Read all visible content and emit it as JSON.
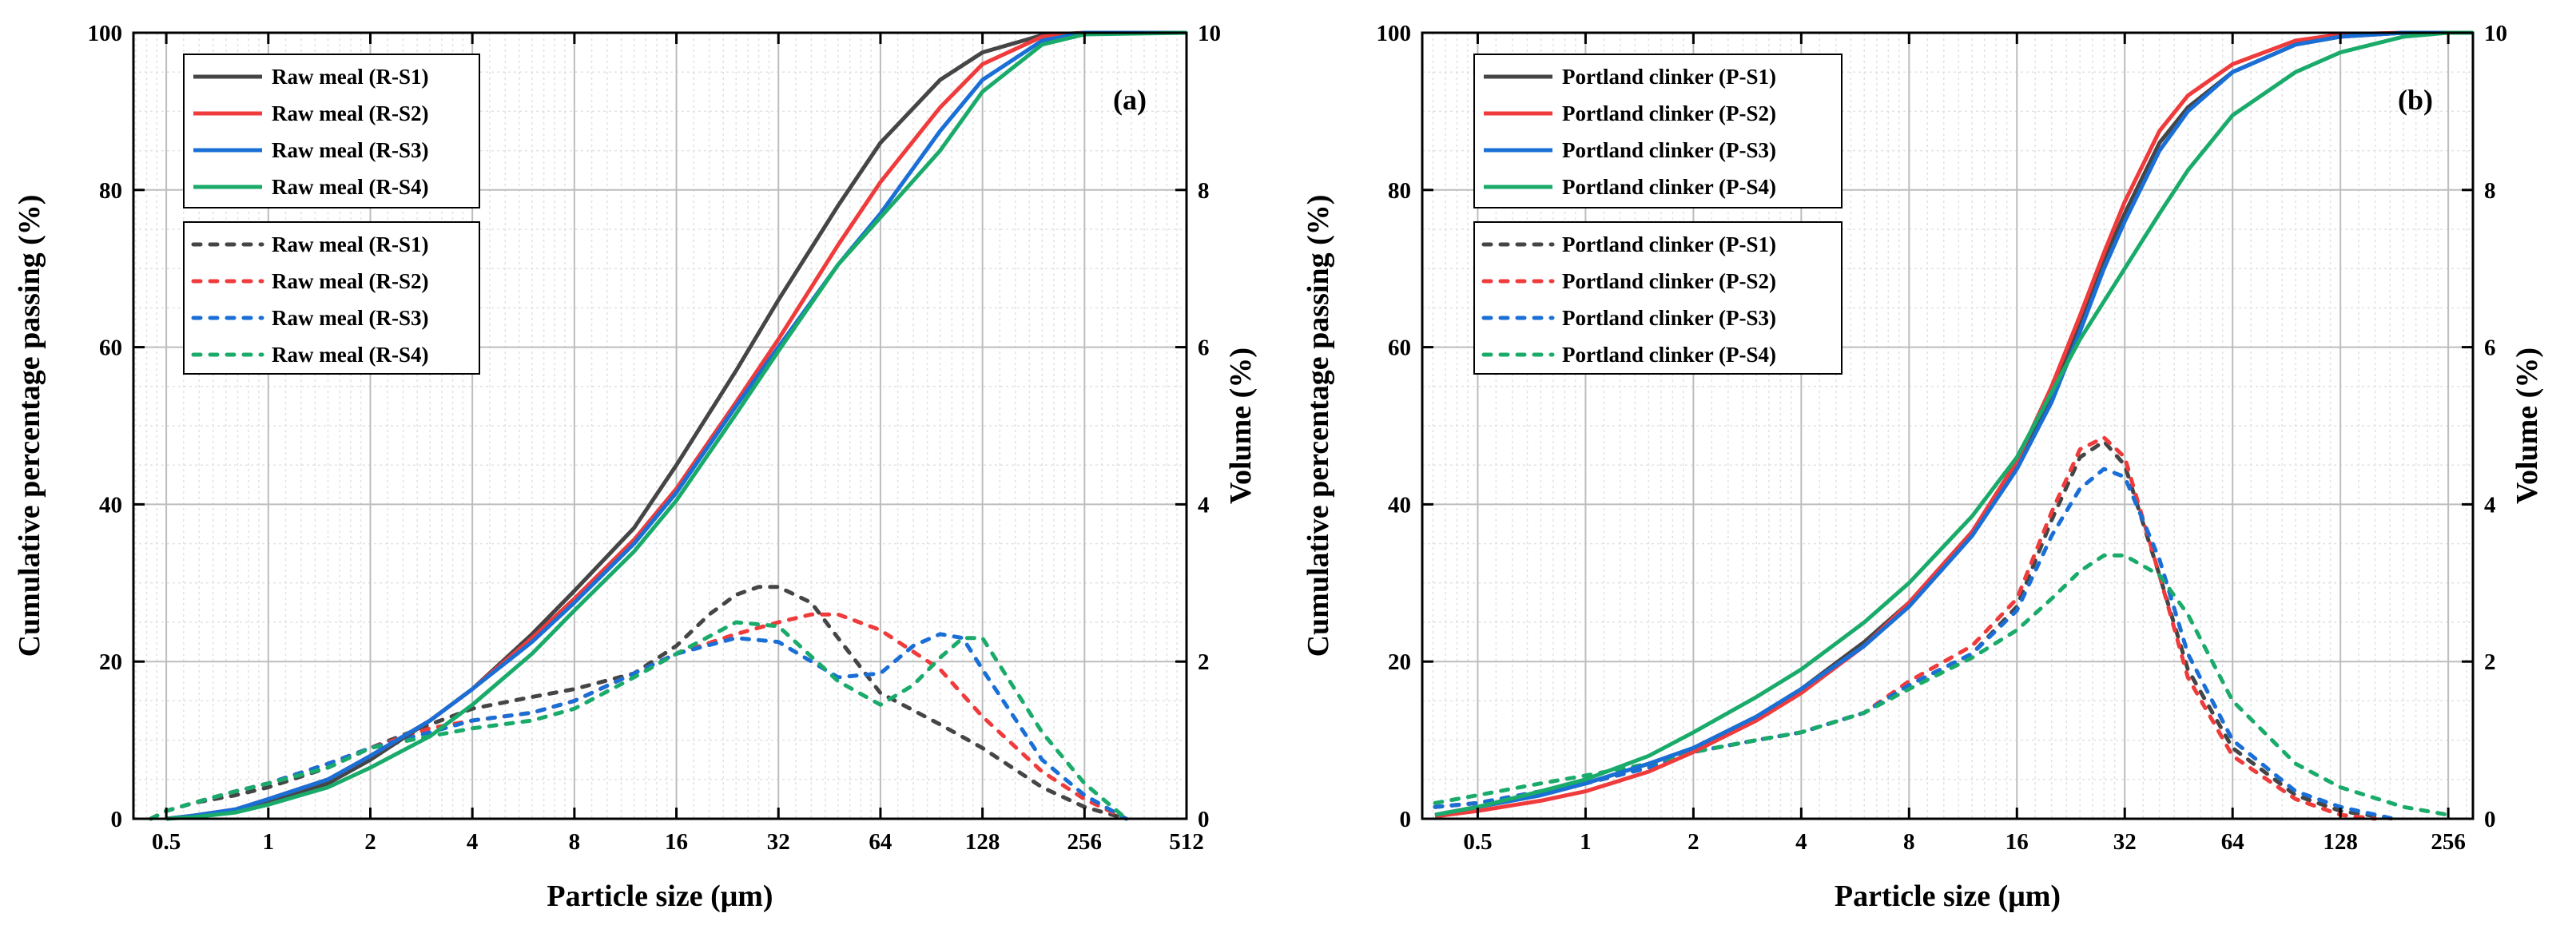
{
  "colors": {
    "S1": "#454545",
    "S2": "#ef3b3b",
    "S3": "#1a6fd6",
    "S4": "#1aab6b",
    "grid_major": "#bdbdbd",
    "grid_minor": "#e2e2e2"
  },
  "chart_data": [
    {
      "type": "line",
      "panel_label": "(a)",
      "xlabel": "Particle size (μm)",
      "ylabel_left": "Cumulative percentage passing (%)",
      "ylabel_right": "Volume (%)",
      "x_scale": "log2",
      "xlim": [
        0.4,
        512
      ],
      "x_ticks": [
        0.5,
        1,
        2,
        4,
        8,
        16,
        32,
        64,
        128,
        256,
        512
      ],
      "x_tick_labels": [
        "0.5",
        "1",
        "2",
        "4",
        "8",
        "16",
        "32",
        "64",
        "128",
        "256",
        "512"
      ],
      "ylim_left": [
        0,
        100
      ],
      "y_ticks_left": [
        0,
        20,
        40,
        60,
        80,
        100
      ],
      "y_tick_labels_left": [
        "0",
        "20",
        "40",
        "60",
        "80",
        "100"
      ],
      "ylim_right": [
        0,
        10
      ],
      "y_ticks_right": [
        0,
        2,
        4,
        6,
        8,
        10
      ],
      "y_tick_labels_right": [
        "0",
        "2",
        "4",
        "6",
        "8",
        "10"
      ],
      "grid": true,
      "legend_placement": "top-left",
      "cumulative_series": [
        {
          "name": "Raw meal (R-S1)",
          "color_key": "S1",
          "axis": "left",
          "style": "solid",
          "x": [
            0.5,
            0.6,
            0.8,
            1,
            1.5,
            2,
            3,
            4,
            6,
            8,
            12,
            16,
            24,
            32,
            48,
            64,
            96,
            128,
            192,
            256,
            512
          ],
          "y": [
            0,
            0.3,
            1,
            2,
            4.5,
            7.5,
            12.5,
            16.5,
            23.5,
            29,
            37,
            45,
            57,
            66,
            78,
            86,
            94,
            97.5,
            99.7,
            100,
            100
          ]
        },
        {
          "name": "Raw meal (R-S2)",
          "color_key": "S2",
          "axis": "left",
          "style": "solid",
          "x": [
            0.5,
            0.6,
            0.8,
            1,
            1.5,
            2,
            3,
            4,
            6,
            8,
            12,
            16,
            24,
            32,
            48,
            64,
            96,
            128,
            192,
            256,
            512
          ],
          "y": [
            0,
            0.4,
            1.2,
            2.5,
            5,
            8,
            12.5,
            16.5,
            23,
            28,
            35.5,
            42,
            53,
            61,
            73,
            81,
            90.5,
            96,
            99.5,
            100,
            100
          ]
        },
        {
          "name": "Raw meal (R-S3)",
          "color_key": "S3",
          "axis": "left",
          "style": "solid",
          "x": [
            0.5,
            0.6,
            0.8,
            1,
            1.5,
            2,
            3,
            4,
            6,
            8,
            12,
            16,
            24,
            32,
            48,
            64,
            96,
            128,
            192,
            256,
            512
          ],
          "y": [
            0,
            0.4,
            1.2,
            2.5,
            5,
            8,
            12.5,
            16.5,
            22.5,
            27.5,
            35,
            41.5,
            52.5,
            60,
            70.5,
            77,
            87.5,
            94,
            99,
            100,
            100
          ]
        },
        {
          "name": "Raw meal (R-S4)",
          "color_key": "S4",
          "axis": "left",
          "style": "solid",
          "x": [
            0.5,
            0.6,
            0.8,
            1,
            1.5,
            2,
            3,
            4,
            6,
            8,
            12,
            16,
            24,
            32,
            48,
            64,
            96,
            128,
            192,
            256,
            512
          ],
          "y": [
            0,
            0.2,
            0.8,
            1.8,
            4,
            6.5,
            10.5,
            14.5,
            21,
            26.5,
            34,
            40.5,
            51.5,
            59.5,
            70.5,
            76.5,
            85,
            92.5,
            98.5,
            99.8,
            100
          ]
        }
      ],
      "volume_series": [
        {
          "name": "Raw meal (R-S1)",
          "color_key": "S1",
          "axis": "right",
          "style": "dotted",
          "x": [
            0.45,
            0.5,
            0.6,
            0.8,
            1,
            1.5,
            2,
            3,
            4,
            6,
            8,
            12,
            16,
            20,
            24,
            28,
            32,
            40,
            48,
            64,
            96,
            128,
            192,
            256,
            340
          ],
          "y": [
            0,
            0.1,
            0.2,
            0.3,
            0.4,
            0.65,
            0.9,
            1.2,
            1.4,
            1.55,
            1.65,
            1.85,
            2.2,
            2.6,
            2.85,
            2.95,
            2.95,
            2.75,
            2.3,
            1.6,
            1.2,
            0.9,
            0.4,
            0.15,
            0
          ]
        },
        {
          "name": "Raw meal (R-S2)",
          "color_key": "S2",
          "axis": "right",
          "style": "dotted",
          "x": [
            0.45,
            0.5,
            0.6,
            0.8,
            1,
            1.5,
            2,
            3,
            4,
            6,
            8,
            12,
            16,
            24,
            32,
            40,
            48,
            64,
            96,
            128,
            192,
            256,
            340
          ],
          "y": [
            0,
            0.1,
            0.2,
            0.35,
            0.45,
            0.7,
            0.9,
            1.15,
            1.25,
            1.35,
            1.5,
            1.85,
            2.1,
            2.35,
            2.5,
            2.6,
            2.6,
            2.4,
            1.9,
            1.3,
            0.6,
            0.25,
            0
          ]
        },
        {
          "name": "Raw meal (R-S3)",
          "color_key": "S3",
          "axis": "right",
          "style": "dotted",
          "x": [
            0.45,
            0.5,
            0.6,
            0.8,
            1,
            1.5,
            2,
            3,
            4,
            6,
            8,
            12,
            16,
            24,
            32,
            48,
            64,
            80,
            96,
            112,
            128,
            192,
            256,
            340
          ],
          "y": [
            0,
            0.1,
            0.2,
            0.35,
            0.45,
            0.7,
            0.9,
            1.1,
            1.25,
            1.35,
            1.5,
            1.85,
            2.1,
            2.3,
            2.25,
            1.8,
            1.85,
            2.2,
            2.35,
            2.3,
            1.9,
            0.75,
            0.3,
            0
          ]
        },
        {
          "name": "Raw meal (R-S4)",
          "color_key": "S4",
          "axis": "right",
          "style": "dotted",
          "x": [
            0.45,
            0.5,
            0.6,
            0.8,
            1,
            1.5,
            2,
            3,
            4,
            6,
            8,
            12,
            16,
            24,
            32,
            48,
            64,
            80,
            96,
            112,
            128,
            192,
            256,
            340
          ],
          "y": [
            0,
            0.1,
            0.2,
            0.35,
            0.45,
            0.65,
            0.9,
            1.05,
            1.15,
            1.25,
            1.4,
            1.8,
            2.1,
            2.5,
            2.45,
            1.75,
            1.45,
            1.7,
            2.05,
            2.3,
            2.3,
            1.1,
            0.45,
            0
          ]
        }
      ]
    },
    {
      "type": "line",
      "panel_label": "(b)",
      "xlabel": "Particle size (μm)",
      "ylabel_left": "Cumulative percentage passing (%)",
      "ylabel_right": "Volume (%)",
      "x_scale": "log2",
      "xlim": [
        0.35,
        300
      ],
      "x_ticks": [
        0.5,
        1,
        2,
        4,
        8,
        16,
        32,
        64,
        128,
        256
      ],
      "x_tick_labels": [
        "0.5",
        "1",
        "2",
        "4",
        "8",
        "16",
        "32",
        "64",
        "128",
        "256"
      ],
      "ylim_left": [
        0,
        100
      ],
      "y_ticks_left": [
        0,
        20,
        40,
        60,
        80,
        100
      ],
      "y_tick_labels_left": [
        "0",
        "20",
        "40",
        "60",
        "80",
        "100"
      ],
      "ylim_right": [
        0,
        10
      ],
      "y_ticks_right": [
        0,
        2,
        4,
        6,
        8,
        10
      ],
      "y_tick_labels_right": [
        "0",
        "2",
        "4",
        "6",
        "8",
        "10"
      ],
      "grid": true,
      "legend_placement": "top-left",
      "cumulative_series": [
        {
          "name": "Portland clinker (P-S1)",
          "color_key": "S1",
          "axis": "left",
          "style": "solid",
          "x": [
            0.38,
            0.5,
            0.75,
            1,
            1.5,
            2,
            3,
            4,
            6,
            8,
            12,
            16,
            20,
            24,
            28,
            32,
            40,
            48,
            64,
            96,
            128,
            192,
            300
          ],
          "y": [
            0.5,
            1.5,
            3,
            4.5,
            7,
            9,
            13,
            16.5,
            22.5,
            27.5,
            36.5,
            45,
            54,
            63,
            71,
            77,
            86,
            90.5,
            95,
            98.5,
            99.5,
            100,
            100
          ]
        },
        {
          "name": "Portland clinker (P-S2)",
          "color_key": "S2",
          "axis": "left",
          "style": "solid",
          "x": [
            0.38,
            0.5,
            0.75,
            1,
            1.5,
            2,
            3,
            4,
            6,
            8,
            12,
            16,
            20,
            24,
            28,
            32,
            40,
            48,
            64,
            96,
            128,
            192,
            300
          ],
          "y": [
            0.3,
            1,
            2.3,
            3.5,
            6,
            8.5,
            12.5,
            16,
            22,
            27.5,
            36.5,
            45.5,
            55,
            64,
            72,
            78.5,
            87.5,
            92,
            96,
            99,
            99.8,
            100,
            100
          ]
        },
        {
          "name": "Portland clinker (P-S3)",
          "color_key": "S3",
          "axis": "left",
          "style": "solid",
          "x": [
            0.38,
            0.5,
            0.75,
            1,
            1.5,
            2,
            3,
            4,
            6,
            8,
            12,
            16,
            20,
            24,
            28,
            32,
            40,
            48,
            64,
            96,
            128,
            192,
            300
          ],
          "y": [
            0.5,
            1.5,
            3,
            4.5,
            7,
            9,
            13,
            16.5,
            22,
            27,
            36,
            44.5,
            53,
            62,
            70,
            76,
            85,
            90,
            95,
            98.5,
            99.5,
            100,
            100
          ]
        },
        {
          "name": "Portland clinker (P-S4)",
          "color_key": "S4",
          "axis": "left",
          "style": "solid",
          "x": [
            0.38,
            0.5,
            0.75,
            1,
            1.5,
            2,
            3,
            4,
            6,
            8,
            12,
            16,
            24,
            32,
            40,
            48,
            64,
            96,
            128,
            192,
            256,
            300
          ],
          "y": [
            0.5,
            1.5,
            3.5,
            5,
            8,
            11,
            15.5,
            19,
            25,
            30,
            38.5,
            46,
            61,
            70,
            77,
            82.5,
            89.5,
            95,
            97.5,
            99.5,
            100,
            100
          ]
        }
      ],
      "volume_series": [
        {
          "name": "Portland clinker (P-S1)",
          "color_key": "S1",
          "axis": "right",
          "style": "dotted",
          "x": [
            0.38,
            0.5,
            0.75,
            1,
            1.5,
            2,
            3,
            4,
            6,
            8,
            12,
            16,
            20,
            24,
            28,
            32,
            40,
            48,
            64,
            96,
            128,
            180
          ],
          "y": [
            0.15,
            0.2,
            0.35,
            0.45,
            0.65,
            0.85,
            1,
            1.1,
            1.35,
            1.7,
            2.1,
            2.7,
            3.8,
            4.6,
            4.8,
            4.5,
            3.1,
            1.9,
            0.9,
            0.3,
            0.1,
            0
          ]
        },
        {
          "name": "Portland clinker (P-S2)",
          "color_key": "S2",
          "axis": "right",
          "style": "dotted",
          "x": [
            0.38,
            0.5,
            0.75,
            1,
            1.5,
            2,
            3,
            4,
            6,
            8,
            12,
            16,
            20,
            24,
            28,
            32,
            40,
            48,
            64,
            96,
            128,
            160
          ],
          "y": [
            0.15,
            0.2,
            0.35,
            0.45,
            0.65,
            0.85,
            1,
            1.1,
            1.35,
            1.75,
            2.2,
            2.8,
            3.9,
            4.7,
            4.85,
            4.6,
            3.1,
            1.8,
            0.8,
            0.25,
            0.05,
            0
          ]
        },
        {
          "name": "Portland clinker (P-S3)",
          "color_key": "S3",
          "axis": "right",
          "style": "dotted",
          "x": [
            0.38,
            0.5,
            0.75,
            1,
            1.5,
            2,
            3,
            4,
            6,
            8,
            12,
            16,
            20,
            24,
            28,
            32,
            40,
            48,
            64,
            96,
            128,
            180
          ],
          "y": [
            0.15,
            0.2,
            0.35,
            0.45,
            0.65,
            0.85,
            1,
            1.1,
            1.35,
            1.7,
            2.1,
            2.65,
            3.6,
            4.2,
            4.45,
            4.35,
            3.3,
            2.1,
            1,
            0.35,
            0.15,
            0
          ]
        },
        {
          "name": "Portland clinker (P-S4)",
          "color_key": "S4",
          "axis": "right",
          "style": "dotted",
          "x": [
            0.38,
            0.5,
            0.75,
            1,
            1.5,
            2,
            3,
            4,
            6,
            8,
            12,
            16,
            20,
            24,
            28,
            32,
            40,
            48,
            64,
            96,
            128,
            192,
            256
          ],
          "y": [
            0.2,
            0.3,
            0.45,
            0.55,
            0.7,
            0.85,
            1,
            1.1,
            1.35,
            1.65,
            2.05,
            2.4,
            2.8,
            3.15,
            3.35,
            3.35,
            3.1,
            2.6,
            1.5,
            0.7,
            0.4,
            0.15,
            0.05
          ]
        }
      ]
    }
  ]
}
